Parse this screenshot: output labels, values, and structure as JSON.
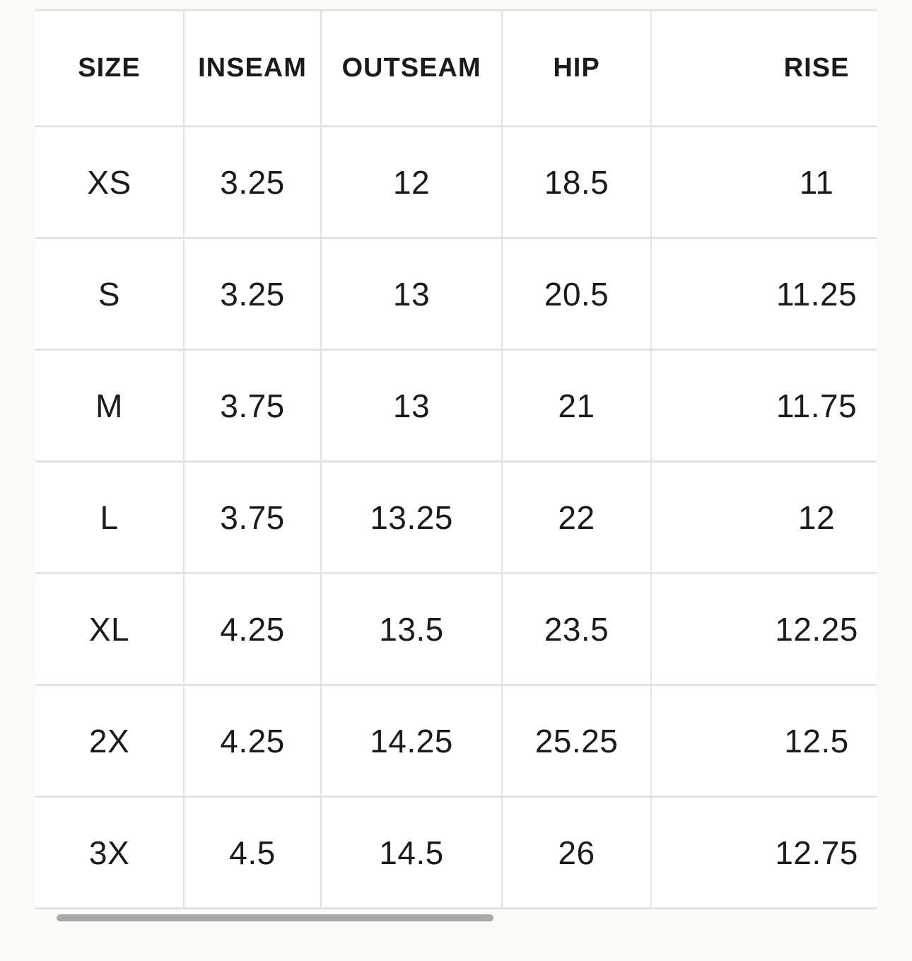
{
  "page": {
    "background_color": "#FAF9F5",
    "cell_background_color": "#FFFFFF",
    "grid_line_color": "#E4E2D9",
    "text_color": "#1B1B1B",
    "scrollbar_thumb_color": "#A9A9A9"
  },
  "table": {
    "columns": [
      "SIZE",
      "INSEAM",
      "OUTSEAM",
      "HIP",
      "RISE"
    ],
    "rows": [
      {
        "size": "XS",
        "cells": [
          "3.25",
          "12",
          "18.5",
          "11"
        ]
      },
      {
        "size": "S",
        "cells": [
          "3.25",
          "13",
          "20.5",
          "11.25"
        ]
      },
      {
        "size": "M",
        "cells": [
          "3.75",
          "13",
          "21",
          "11.75"
        ]
      },
      {
        "size": "L",
        "cells": [
          "3.75",
          "13.25",
          "22",
          "12"
        ]
      },
      {
        "size": "XL",
        "cells": [
          "4.25",
          "13.5",
          "23.5",
          "12.25"
        ]
      },
      {
        "size": "2X",
        "cells": [
          "4.25",
          "14.25",
          "25.25",
          "12.5"
        ]
      },
      {
        "size": "3X",
        "cells": [
          "4.5",
          "14.5",
          "26",
          "12.75"
        ]
      }
    ]
  },
  "scrollbar": {
    "orientation": "horizontal"
  }
}
